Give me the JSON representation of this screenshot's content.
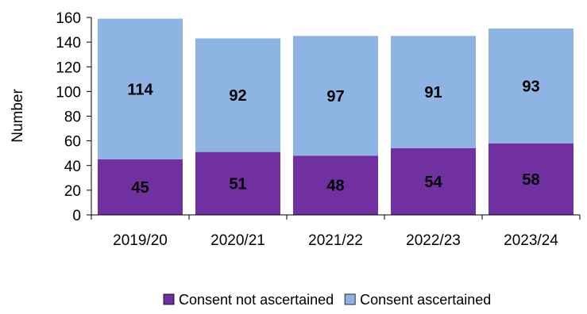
{
  "chart_data": {
    "type": "bar",
    "stacked": true,
    "categories": [
      "2019/20",
      "2020/21",
      "2021/22",
      "2022/23",
      "2023/24"
    ],
    "series": [
      {
        "name": "Consent not ascertained",
        "values": [
          45,
          51,
          48,
          54,
          58
        ],
        "color": "#7030A0"
      },
      {
        "name": "Consent ascertained",
        "values": [
          114,
          92,
          97,
          91,
          93
        ],
        "color": "#8DB4E2"
      }
    ],
    "ylabel": "Number",
    "ylim": [
      0,
      160
    ],
    "yticks": [
      0,
      20,
      40,
      60,
      80,
      100,
      120,
      140,
      160
    ],
    "grid": false,
    "legend_position": "bottom"
  }
}
